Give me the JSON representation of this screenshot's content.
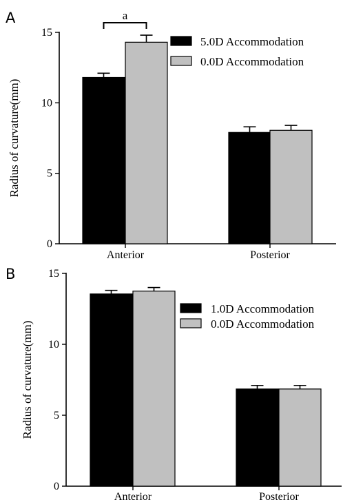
{
  "chart_data": [
    {
      "type": "bar",
      "panel_label": "A",
      "categories": [
        "Anterior",
        "Posterior"
      ],
      "series": [
        {
          "name": "5.0D Accommodation",
          "color": "#000000",
          "values": [
            11.8,
            7.9
          ],
          "errors": [
            0.3,
            0.4
          ]
        },
        {
          "name": "0.0D Accommodation",
          "color": "#c0c0c0",
          "values": [
            14.3,
            8.05
          ],
          "errors": [
            0.5,
            0.35
          ]
        }
      ],
      "ylabel": "Radius of curvature(mm)",
      "ylim": [
        0,
        15
      ],
      "yticks": [
        "0",
        "5",
        "10",
        "15"
      ],
      "annotation": {
        "text": "a",
        "category": "Anterior"
      },
      "legend": "top-right"
    },
    {
      "type": "bar",
      "panel_label": "B",
      "categories": [
        "Anterior",
        "Posterior"
      ],
      "series": [
        {
          "name": "1.0D Accommodation",
          "color": "#000000",
          "values": [
            13.55,
            6.85
          ],
          "errors": [
            0.25,
            0.25
          ]
        },
        {
          "name": "0.0D Accommodation",
          "color": "#c0c0c0",
          "values": [
            13.75,
            6.85
          ],
          "errors": [
            0.25,
            0.25
          ]
        }
      ],
      "ylabel": "Radius of curvature(mm)",
      "ylim": [
        0,
        15
      ],
      "yticks": [
        "0",
        "5",
        "10",
        "15"
      ],
      "legend": "top-right"
    }
  ]
}
